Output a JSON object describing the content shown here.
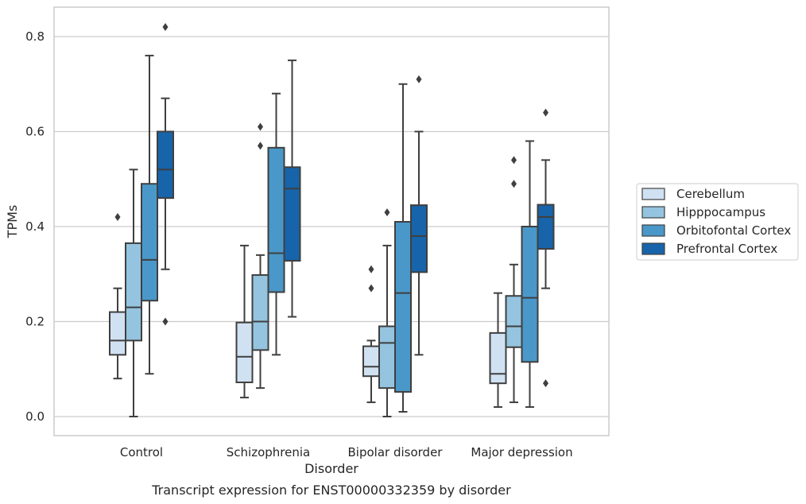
{
  "chart_data": {
    "type": "box",
    "title": "",
    "caption": "Transcript expression for ENST00000332359 by disorder",
    "xlabel": "Disorder",
    "ylabel": "TPMs",
    "ylim": [
      -0.04,
      0.86
    ],
    "yticks": [
      0.0,
      0.2,
      0.4,
      0.6,
      0.8
    ],
    "ytick_labels": [
      "0.0",
      "0.2",
      "0.4",
      "0.6",
      "0.8"
    ],
    "grid": "horizontal",
    "legend_position": "right",
    "categories": [
      "Control",
      "Schizophrenia",
      "Bipolar disorder",
      "Major depression"
    ],
    "series": [
      {
        "name": "Cerebellum",
        "color": "#d0e1f2",
        "boxes": [
          {
            "whisker_low": 0.08,
            "q1": 0.13,
            "median": 0.16,
            "q3": 0.22,
            "whisker_high": 0.27,
            "outliers": [
              0.42
            ]
          },
          {
            "whisker_low": 0.04,
            "q1": 0.072,
            "median": 0.126,
            "q3": 0.198,
            "whisker_high": 0.36,
            "outliers": []
          },
          {
            "whisker_low": 0.03,
            "q1": 0.085,
            "median": 0.105,
            "q3": 0.148,
            "whisker_high": 0.16,
            "outliers": [
              0.27,
              0.31
            ]
          },
          {
            "whisker_low": 0.02,
            "q1": 0.07,
            "median": 0.09,
            "q3": 0.176,
            "whisker_high": 0.26,
            "outliers": []
          }
        ]
      },
      {
        "name": "Hipppocampus",
        "color": "#94c4df",
        "boxes": [
          {
            "whisker_low": 0.0,
            "q1": 0.16,
            "median": 0.23,
            "q3": 0.365,
            "whisker_high": 0.52,
            "outliers": []
          },
          {
            "whisker_low": 0.06,
            "q1": 0.14,
            "median": 0.2,
            "q3": 0.298,
            "whisker_high": 0.34,
            "outliers": [
              0.57,
              0.61
            ]
          },
          {
            "whisker_low": 0.0,
            "q1": 0.06,
            "median": 0.155,
            "q3": 0.19,
            "whisker_high": 0.36,
            "outliers": [
              0.43
            ]
          },
          {
            "whisker_low": 0.03,
            "q1": 0.146,
            "median": 0.19,
            "q3": 0.254,
            "whisker_high": 0.32,
            "outliers": [
              0.49,
              0.54
            ]
          }
        ]
      },
      {
        "name": "Orbitofontal Cortex",
        "color": "#4a98c9",
        "boxes": [
          {
            "whisker_low": 0.09,
            "q1": 0.244,
            "median": 0.33,
            "q3": 0.49,
            "whisker_high": 0.76,
            "outliers": []
          },
          {
            "whisker_low": 0.13,
            "q1": 0.262,
            "median": 0.344,
            "q3": 0.566,
            "whisker_high": 0.68,
            "outliers": []
          },
          {
            "whisker_low": 0.01,
            "q1": 0.052,
            "median": 0.26,
            "q3": 0.41,
            "whisker_high": 0.7,
            "outliers": []
          },
          {
            "whisker_low": 0.02,
            "q1": 0.115,
            "median": 0.25,
            "q3": 0.4,
            "whisker_high": 0.58,
            "outliers": []
          }
        ]
      },
      {
        "name": "Prefrontal Cortex",
        "color": "#1764ab",
        "boxes": [
          {
            "whisker_low": 0.31,
            "q1": 0.46,
            "median": 0.52,
            "q3": 0.6,
            "whisker_high": 0.67,
            "outliers": [
              0.2,
              0.82
            ]
          },
          {
            "whisker_low": 0.21,
            "q1": 0.328,
            "median": 0.48,
            "q3": 0.525,
            "whisker_high": 0.75,
            "outliers": []
          },
          {
            "whisker_low": 0.13,
            "q1": 0.304,
            "median": 0.38,
            "q3": 0.445,
            "whisker_high": 0.6,
            "outliers": [
              0.71
            ]
          },
          {
            "whisker_low": 0.27,
            "q1": 0.353,
            "median": 0.42,
            "q3": 0.446,
            "whisker_high": 0.54,
            "outliers": [
              0.07,
              0.64
            ]
          }
        ]
      }
    ]
  }
}
